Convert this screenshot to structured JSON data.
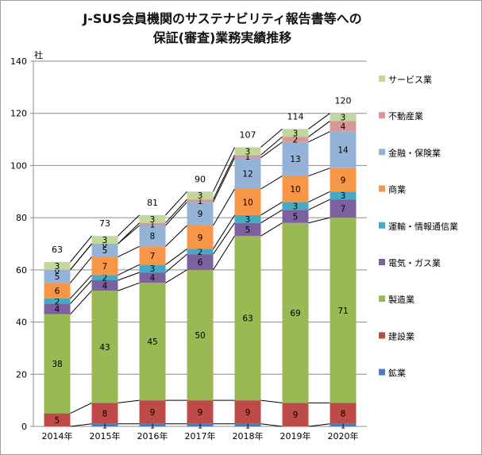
{
  "chart_data": {
    "type": "bar",
    "stacked": true,
    "title_lines": [
      "J-SUS会員機関のサステナビリティ報告書等への",
      "保証(審査)業務実績推移"
    ],
    "ylabel": "社",
    "ylim": [
      0,
      140
    ],
    "yticks": [
      0,
      20,
      40,
      60,
      80,
      100,
      120,
      140
    ],
    "grid": true,
    "legend_position": "right",
    "categories": [
      "2014年",
      "2015年",
      "2016年",
      "2017年",
      "2018年",
      "2019年",
      "2020年"
    ],
    "totals": [
      63,
      73,
      81,
      90,
      107,
      114,
      120
    ],
    "series": [
      {
        "name": "鉱業",
        "color": "#4a7ebb",
        "values": [
          0,
          1,
          1,
          1,
          1,
          0,
          1
        ]
      },
      {
        "name": "建設業",
        "color": "#be4b48",
        "values": [
          5,
          8,
          9,
          9,
          9,
          9,
          8
        ]
      },
      {
        "name": "製造業",
        "color": "#98b954",
        "values": [
          38,
          43,
          45,
          50,
          63,
          69,
          71
        ]
      },
      {
        "name": "電気・ガス業",
        "color": "#7d60a0",
        "values": [
          4,
          4,
          4,
          6,
          5,
          5,
          7
        ]
      },
      {
        "name": "運輸・情報通信業",
        "color": "#46aac5",
        "values": [
          2,
          2,
          3,
          2,
          3,
          3,
          3
        ]
      },
      {
        "name": "商業",
        "color": "#f79646",
        "values": [
          6,
          7,
          7,
          9,
          10,
          10,
          9
        ]
      },
      {
        "name": "金融・保険業",
        "color": "#95b3d7",
        "values": [
          5,
          5,
          8,
          9,
          12,
          13,
          14
        ]
      },
      {
        "name": "不動産業",
        "color": "#d99694",
        "values": [
          0,
          0,
          1,
          1,
          1,
          2,
          4
        ]
      },
      {
        "name": "サービス業",
        "color": "#c3d69b",
        "values": [
          3,
          3,
          3,
          3,
          3,
          3,
          3
        ]
      }
    ],
    "legend_order": [
      "サービス業",
      "不動産業",
      "金融・保険業",
      "商業",
      "運輸・情報通信業",
      "電気・ガス業",
      "製造業",
      "建設業",
      "鉱業"
    ]
  }
}
